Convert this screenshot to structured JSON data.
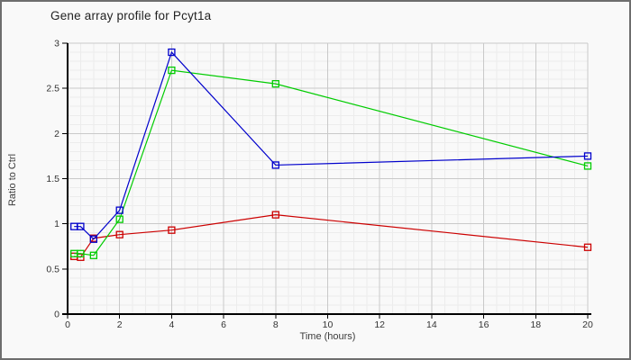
{
  "chart_data": {
    "type": "line",
    "title": "Gene array profile for Pcyt1a",
    "xlabel": "Time (hours)",
    "ylabel": "Ratio to Ctrl",
    "xlim": [
      0,
      20
    ],
    "ylim": [
      0,
      3
    ],
    "x_major_ticks": [
      0,
      2,
      4,
      6,
      8,
      10,
      12,
      14,
      16,
      18,
      20
    ],
    "y_major_ticks": [
      0,
      0.5,
      1,
      1.5,
      2,
      2.5,
      3
    ],
    "x_minor_step": 0.5,
    "y_minor_step": 0.1,
    "grid": true,
    "legend": "none",
    "marker": "open-square",
    "x": [
      0.25,
      0.5,
      1,
      2,
      4,
      8,
      20
    ],
    "series": [
      {
        "name": "red-series",
        "color": "#cc0000",
        "values": [
          0.64,
          0.63,
          0.84,
          0.88,
          0.93,
          1.1,
          0.74
        ]
      },
      {
        "name": "green-series",
        "color": "#00cc00",
        "values": [
          0.67,
          0.67,
          0.65,
          1.05,
          2.7,
          2.55,
          1.64
        ]
      },
      {
        "name": "blue-series",
        "color": "#0000cc",
        "values": [
          0.97,
          0.97,
          0.83,
          1.15,
          2.9,
          1.65,
          1.75
        ]
      }
    ],
    "colors": {
      "major_grid": "#c9c9c9",
      "minor_grid": "#ececec",
      "axis": "#000000",
      "background": "#f9f9f9",
      "frame_border": "#6e6e6e"
    }
  }
}
